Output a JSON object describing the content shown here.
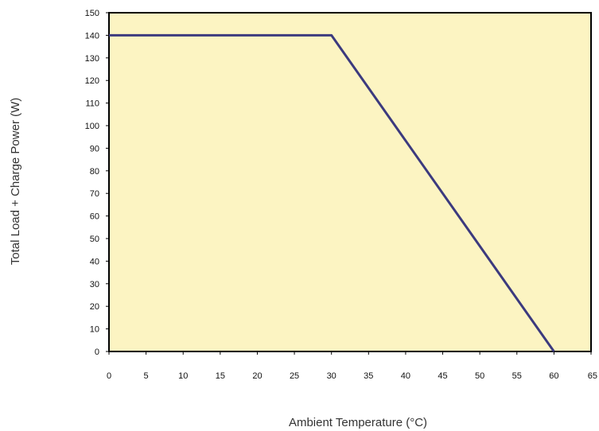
{
  "chart_data": {
    "type": "line",
    "xlabel": "Ambient Temperature (°C)",
    "ylabel": "Total Load + Charge Power (W)",
    "xlim": [
      0,
      65
    ],
    "ylim": [
      0,
      150
    ],
    "x_ticks": [
      0,
      5,
      10,
      15,
      20,
      25,
      30,
      35,
      40,
      45,
      50,
      55,
      60,
      65
    ],
    "y_ticks": [
      0,
      10,
      20,
      30,
      40,
      50,
      60,
      70,
      80,
      90,
      100,
      110,
      120,
      130,
      140,
      150
    ],
    "grid": false,
    "series": [
      {
        "x": [
          0,
          30,
          60
        ],
        "y": [
          140,
          140,
          0
        ]
      }
    ],
    "colors": {
      "plot_background": "#fcf4c2",
      "line": "#3c3a7e",
      "axis": "#000000"
    }
  }
}
